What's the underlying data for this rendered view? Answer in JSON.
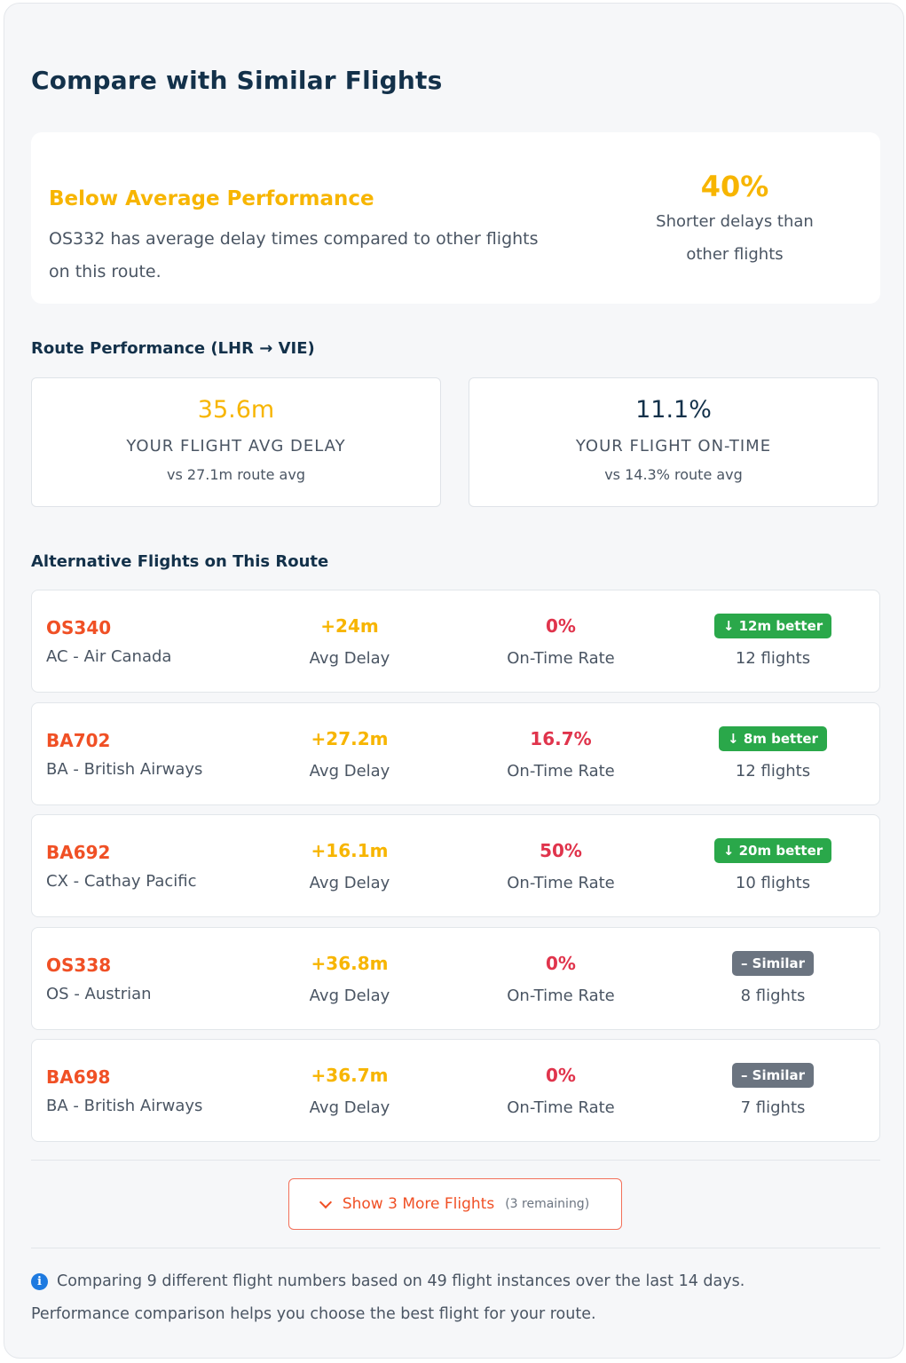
{
  "title": "Compare with Similar Flights",
  "summary": {
    "heading": "Below Average Performance",
    "description": "OS332 has average delay times compared to other flights on this route.",
    "percent": "40%",
    "percent_label": "Shorter delays than other flights"
  },
  "route": {
    "title": "Route Performance (LHR → VIE)",
    "avg_delay": {
      "value": "35.6m",
      "label": "YOUR FLIGHT AVG DELAY",
      "sub": "vs 27.1m route avg"
    },
    "on_time": {
      "value": "11.1%",
      "label": "YOUR FLIGHT ON-TIME",
      "sub": "vs 14.3% route avg"
    }
  },
  "alternatives": {
    "title": "Alternative Flights on This Route",
    "delay_label": "Avg Delay",
    "ontime_label": "On-Time Rate",
    "flights": [
      {
        "code": "OS340",
        "airline": "AC - Air Canada",
        "delay": "+24m",
        "ontime": "0%",
        "badge": "↓ 12m better",
        "badge_type": "better",
        "count": "12 flights"
      },
      {
        "code": "BA702",
        "airline": "BA - British Airways",
        "delay": "+27.2m",
        "ontime": "16.7%",
        "badge": "↓ 8m better",
        "badge_type": "better",
        "count": "12 flights"
      },
      {
        "code": "BA692",
        "airline": "CX - Cathay Pacific",
        "delay": "+16.1m",
        "ontime": "50%",
        "badge": "↓ 20m better",
        "badge_type": "better",
        "count": "10 flights"
      },
      {
        "code": "OS338",
        "airline": "OS - Austrian",
        "delay": "+36.8m",
        "ontime": "0%",
        "badge": "– Similar",
        "badge_type": "similar",
        "count": "8 flights"
      },
      {
        "code": "BA698",
        "airline": "BA - British Airways",
        "delay": "+36.7m",
        "ontime": "0%",
        "badge": "– Similar",
        "badge_type": "similar",
        "count": "7 flights"
      }
    ]
  },
  "more_button": {
    "label": "Show 3 More Flights",
    "remaining": "(3 remaining)"
  },
  "footer": {
    "line1": "Comparing 9 different flight numbers based on 49 flight instances over the last 14 days.",
    "line2": "Performance comparison helps you choose the best flight for your route."
  },
  "colors": {
    "accent": "#f05025",
    "warning": "#f7b500",
    "danger": "#e0344c",
    "success": "#2aa84a",
    "neutral": "#6b7480",
    "info": "#1e7ae0"
  }
}
